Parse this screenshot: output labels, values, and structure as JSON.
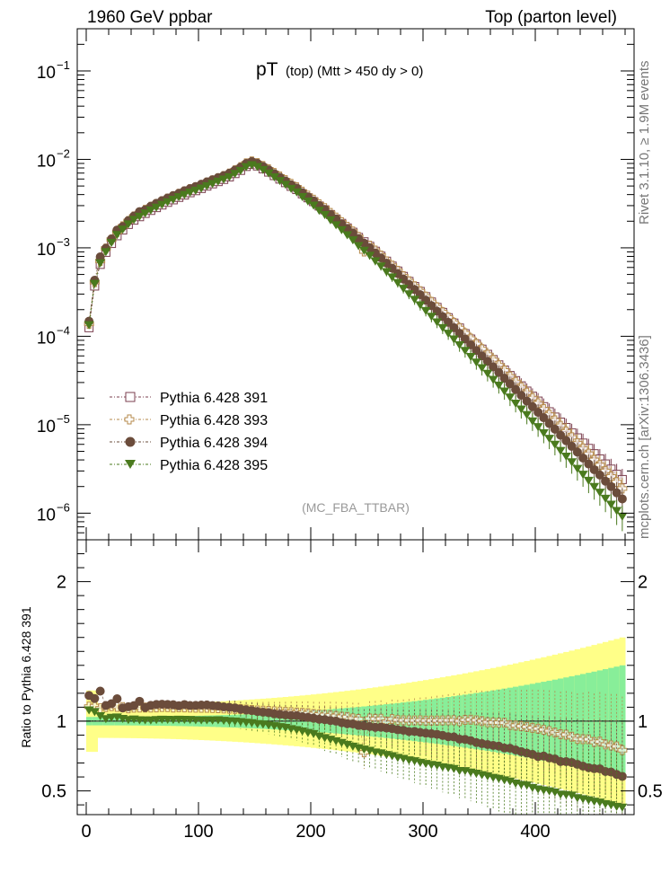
{
  "header": {
    "left": "1960 GeV ppbar",
    "right": "Top (parton level)"
  },
  "side_labels": {
    "top": "Rivet 3.1.10, ≥ 1.9M events",
    "bottom": "mcplots.cern.ch [arXiv:1306.3436]"
  },
  "analysis_label": "(MC_FBA_TTBAR)",
  "colors": {
    "s391": "#7b3f4f",
    "s393": "#b58a4b",
    "s394": "#6b4c3b",
    "s395": "#4a7a1e",
    "band_yellow": "#ffff88",
    "band_green": "#88ee99"
  },
  "chart_data": [
    {
      "type": "scatter",
      "title_main": "pT",
      "title_sub": "(top) (Mtt > 450 dy > 0)",
      "xlabel": "",
      "ylabel": "",
      "log_y": true,
      "xlim": [
        -8,
        488
      ],
      "ylim": [
        5e-07,
        0.3
      ],
      "x_ticks": [
        0,
        100,
        200,
        300,
        400
      ],
      "y_tick_labels": [
        {
          "value": 0.1,
          "base": "10",
          "exp": "−1"
        },
        {
          "value": 0.01,
          "base": "10",
          "exp": "−2"
        },
        {
          "value": 0.001,
          "base": "10",
          "exp": "−3"
        },
        {
          "value": 0.0001,
          "base": "10",
          "exp": "−4"
        },
        {
          "value": 1e-05,
          "base": "10",
          "exp": "−5"
        },
        {
          "value": 1e-06,
          "base": "10",
          "exp": "−6"
        }
      ],
      "legend_position": "lower-left",
      "x": [
        2.5,
        7.5,
        12.5,
        17.5,
        22.5,
        27.5,
        32.5,
        37.5,
        42.5,
        47.5,
        52.5,
        57.5,
        62.5,
        67.5,
        72.5,
        77.5,
        82.5,
        87.5,
        92.5,
        97.5,
        102.5,
        107.5,
        112.5,
        117.5,
        122.5,
        127.5,
        132.5,
        137.5,
        142.5,
        147.5,
        152.5,
        157.5,
        162.5,
        167.5,
        172.5,
        177.5,
        182.5,
        187.5,
        192.5,
        197.5,
        202.5,
        207.5,
        212.5,
        217.5,
        222.5,
        227.5,
        232.5,
        237.5,
        242.5,
        247.5,
        252.5,
        257.5,
        262.5,
        267.5,
        272.5,
        277.5,
        282.5,
        287.5,
        292.5,
        297.5,
        302.5,
        307.5,
        312.5,
        317.5,
        322.5,
        327.5,
        332.5,
        337.5,
        342.5,
        347.5,
        352.5,
        357.5,
        362.5,
        367.5,
        372.5,
        377.5,
        382.5,
        387.5,
        392.5,
        397.5,
        402.5,
        407.5,
        412.5,
        417.5,
        422.5,
        427.5,
        432.5,
        437.5,
        442.5,
        447.5,
        452.5,
        457.5,
        462.5,
        467.5,
        472.5,
        477.5
      ],
      "series": [
        {
          "name": "Pythia 6.428 391",
          "marker": "open-square",
          "values": [
            0.000125,
            0.00037,
            0.00065,
            0.00089,
            0.00112,
            0.00137,
            0.00159,
            0.00184,
            0.00206,
            0.00225,
            0.00245,
            0.00265,
            0.00285,
            0.00305,
            0.00327,
            0.00349,
            0.00372,
            0.00395,
            0.0042,
            0.00443,
            0.00469,
            0.00499,
            0.00529,
            0.00561,
            0.00594,
            0.00634,
            0.00691,
            0.00751,
            0.00832,
            0.00879,
            0.00843,
            0.00782,
            0.00719,
            0.00656,
            0.00599,
            0.00546,
            0.00496,
            0.00456,
            0.00408,
            0.00368,
            0.00333,
            0.00297,
            0.00269,
            0.00238,
            0.00212,
            0.00189,
            0.00168,
            0.0015,
            0.00131,
            0.00117,
            0.00104,
            0.000915,
            0.000805,
            0.000706,
            0.000621,
            0.000546,
            0.000475,
            0.000417,
            0.000365,
            0.000321,
            0.00028,
            0.000244,
            0.000212,
            0.000186,
            0.000162,
            0.000141,
            0.000124,
            0.000107,
            9.3e-05,
            8.15e-05,
            7.15e-05,
            6.25e-05,
            5.45e-05,
            4.75e-05,
            4.15e-05,
            3.6e-05,
            3.15e-05,
            2.75e-05,
            2.4e-05,
            2.1e-05,
            1.85e-05,
            1.6e-05,
            1.4e-05,
            1.22e-05,
            1.07e-05,
            9.3e-06,
            8.1e-06,
            7.1e-06,
            6.2e-06,
            5.4e-06,
            4.7e-06,
            4.1e-06,
            3.6e-06,
            3.15e-06,
            2.75e-06,
            2.4e-06
          ]
        },
        {
          "name": "Pythia 6.428 393",
          "marker": "open-cross",
          "values": [
            0.000138,
            0.00041,
            0.00071,
            0.00098,
            0.00124,
            0.00151,
            0.00175,
            0.00201,
            0.00226,
            0.00247,
            0.00269,
            0.00291,
            0.00313,
            0.00336,
            0.0036,
            0.00383,
            0.00409,
            0.00434,
            0.00461,
            0.00486,
            0.00514,
            0.00547,
            0.00579,
            0.00613,
            0.00648,
            0.00691,
            0.00752,
            0.00816,
            0.00901,
            0.00949,
            0.00908,
            0.00841,
            0.00772,
            0.00702,
            0.0064,
            0.00582,
            0.00528,
            0.00484,
            0.00432,
            0.00389,
            0.0035,
            0.00311,
            0.00281,
            0.00248,
            0.0022,
            0.00195,
            0.00173,
            0.00153,
            0.00133,
            0.000909,
            0.00106,
            0.00093,
            0.000819,
            0.000704,
            0.00063,
            0.00055,
            0.000478,
            0.000419,
            0.000367,
            0.000323,
            0.000281,
            0.000245,
            0.000213,
            0.000187,
            0.000163,
            0.000142,
            0.000124,
            0.000108,
            9.4e-05,
            8.2e-05,
            7.15e-05,
            6.2e-05,
            5.4e-05,
            4.7e-05,
            4.1e-05,
            3.5e-05,
            3.05e-05,
            2.65e-05,
            2.3e-05,
            2e-05,
            1.75e-05,
            1.5e-05,
            1.3e-05,
            1.12e-05,
            9.7e-06,
            8.4e-06,
            7.2e-06,
            6.2e-06,
            5.4e-06,
            4.7e-06,
            4e-06,
            3.5e-06,
            3e-06,
            2.6e-06,
            2.25e-06,
            1.9e-06
          ]
        },
        {
          "name": "Pythia 6.428 394",
          "marker": "filled-circle",
          "values": [
            0.000148,
            0.00043,
            0.00079,
            0.00099,
            0.00126,
            0.00159,
            0.00174,
            0.00203,
            0.00229,
            0.00257,
            0.00269,
            0.00295,
            0.00319,
            0.00342,
            0.00366,
            0.0039,
            0.00413,
            0.00442,
            0.00467,
            0.00493,
            0.00523,
            0.00557,
            0.00588,
            0.00622,
            0.00655,
            0.00697,
            0.00757,
            0.00816,
            0.00899,
            0.00946,
            0.00901,
            0.00832,
            0.00762,
            0.0069,
            0.00628,
            0.0057,
            0.00516,
            0.00474,
            0.00421,
            0.00378,
            0.0034,
            0.00301,
            0.00272,
            0.00239,
            0.00212,
            0.00187,
            0.00165,
            0.00147,
            0.00127,
            0.00113,
            0.001,
            0.000874,
            0.00077,
            0.000671,
            0.000588,
            0.000512,
            0.000444,
            0.000386,
            0.000338,
            0.000295,
            0.000256,
            0.000222,
            0.000192,
            0.000167,
            0.000144,
            0.000125,
            0.000108,
            9.3e-05,
            8e-05,
            6.9e-05,
            6e-05,
            5.2e-05,
            4.5e-05,
            3.9e-05,
            3.35e-05,
            2.9e-05,
            2.5e-05,
            2.15e-05,
            1.85e-05,
            1.6e-05,
            1.38e-05,
            1.2e-05,
            1.03e-05,
            8.9e-06,
            7.6e-06,
            6.6e-06,
            5.7e-06,
            4.9e-06,
            4.2e-06,
            3.6e-06,
            3.1e-06,
            2.7e-06,
            2.3e-06,
            2e-06,
            1.7e-06,
            1.45e-06
          ]
        },
        {
          "name": "Pythia 6.428 395",
          "marker": "filled-triangle-down",
          "values": [
            0.000135,
            0.000395,
            0.000675,
            0.000905,
            0.00115,
            0.00141,
            0.00162,
            0.00186,
            0.00209,
            0.00227,
            0.00247,
            0.00267,
            0.00288,
            0.00309,
            0.00331,
            0.00353,
            0.00377,
            0.004,
            0.00425,
            0.00447,
            0.00473,
            0.00503,
            0.00533,
            0.00566,
            0.00597,
            0.00635,
            0.00691,
            0.00748,
            0.00825,
            0.00869,
            0.00828,
            0.00765,
            0.00699,
            0.00634,
            0.00575,
            0.00521,
            0.00469,
            0.00428,
            0.00379,
            0.00338,
            0.00303,
            0.00265,
            0.00237,
            0.00207,
            0.00182,
            0.0016,
            0.0014,
            0.00123,
            0.00106,
            0.000935,
            0.000822,
            0.000712,
            0.000621,
            0.000537,
            0.000467,
            0.000404,
            0.000348,
            0.000301,
            0.000261,
            0.000226,
            0.000195,
            0.000168,
            0.000145,
            0.000125,
            0.000108,
            9.3e-05,
            8e-05,
            6.9e-05,
            5.9e-05,
            5.1e-05,
            4.4e-05,
            3.8e-05,
            3.25e-05,
            2.8e-05,
            2.4e-05,
            2.05e-05,
            1.75e-05,
            1.5e-05,
            1.3e-05,
            1.1e-05,
            9.5e-06,
            8.1e-06,
            7e-06,
            6e-06,
            5.1e-06,
            4.4e-06,
            3.8e-06,
            3.2e-06,
            2.75e-06,
            2.35e-06,
            2e-06,
            1.72e-06,
            1.47e-06,
            1.26e-06,
            1.07e-06,
            9.2e-07
          ]
        }
      ]
    },
    {
      "type": "scatter",
      "ylabel": "Ratio to Pythia 6.428 391",
      "xlim": [
        -8,
        488
      ],
      "ylim": [
        0.33,
        2.3
      ],
      "x_ticks": [
        0,
        100,
        200,
        300,
        400
      ],
      "y_ticks": [
        0.5,
        1,
        2
      ],
      "y_tick_labels": [
        "0.5",
        "1",
        "2"
      ],
      "reference_line": 1,
      "uncertainty_bands": {
        "yellow_halfwidth": [
          0.12,
          0.6
        ],
        "green_halfwidth": [
          0.03,
          0.4
        ]
      }
    }
  ]
}
